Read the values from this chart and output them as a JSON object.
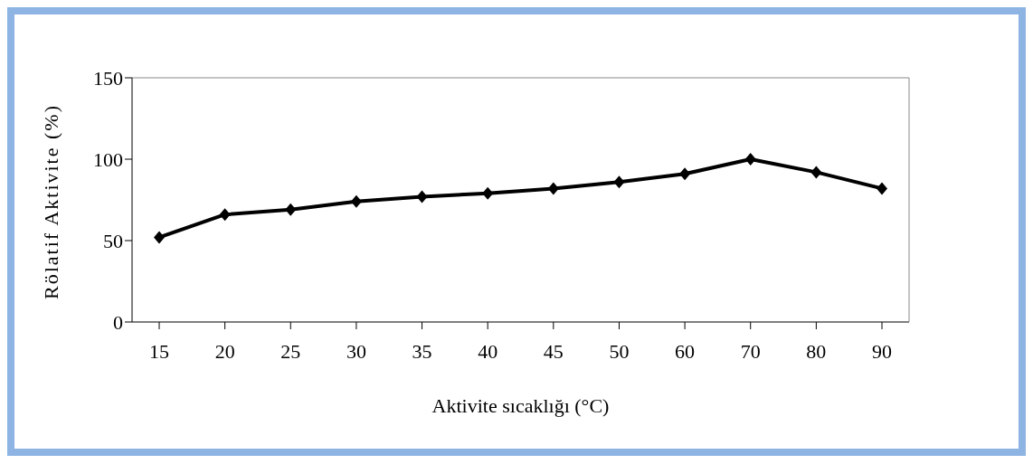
{
  "chart_data": {
    "type": "line",
    "xlabel": "Aktivite sıcaklığı (°C)",
    "ylabel": "Rölatif Aktivite (%)",
    "categories": [
      "15",
      "20",
      "25",
      "30",
      "35",
      "40",
      "45",
      "50",
      "60",
      "70",
      "80",
      "90"
    ],
    "series": [
      {
        "color": "#000000",
        "values": [
          52,
          66,
          69,
          74,
          77,
          79,
          82,
          86,
          91,
          100,
          92,
          82
        ]
      }
    ],
    "ylim": [
      0,
      150
    ],
    "yticks": [
      0,
      50,
      100,
      150
    ],
    "grid": false,
    "legend": false,
    "marker": "diamond",
    "line_style": "solid"
  }
}
